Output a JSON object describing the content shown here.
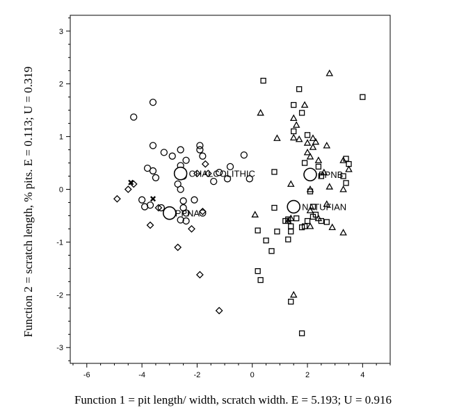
{
  "chart_data": {
    "type": "scatter",
    "xlabel": "Function 1 = pit length/ width, scratch width.  E = 5.193; U = 0.916",
    "ylabel": "Function 2 = scratch length, % pits.  E = 0.113; U = 0.319",
    "xlim": [
      -6.6,
      5.0
    ],
    "ylim": [
      -3.3,
      3.3
    ],
    "xticks": [
      -6,
      -4,
      -2,
      0,
      2,
      4
    ],
    "yticks": [
      -3,
      -2,
      -1,
      0,
      1,
      2,
      3
    ],
    "grid": false,
    "series": [
      {
        "marker": "circle",
        "points": [
          [
            -4.3,
            1.37
          ],
          [
            -3.6,
            1.65
          ],
          [
            -3.6,
            0.83
          ],
          [
            -3.2,
            0.7
          ],
          [
            -2.9,
            0.63
          ],
          [
            -2.6,
            0.75
          ],
          [
            -2.4,
            0.55
          ],
          [
            -1.9,
            0.83
          ],
          [
            -1.9,
            0.75
          ],
          [
            -1.8,
            0.63
          ],
          [
            -3.8,
            0.4
          ],
          [
            -3.6,
            0.35
          ],
          [
            -3.5,
            0.22
          ],
          [
            -2.6,
            0.45
          ],
          [
            -2.5,
            0.25
          ],
          [
            -2.7,
            0.1
          ],
          [
            -2.6,
            0.0
          ],
          [
            -4.0,
            -0.2
          ],
          [
            -3.9,
            -0.33
          ],
          [
            -3.7,
            -0.3
          ],
          [
            -3.3,
            -0.35
          ],
          [
            -2.5,
            -0.22
          ],
          [
            -2.5,
            -0.35
          ],
          [
            -2.4,
            -0.45
          ],
          [
            -2.6,
            -0.58
          ],
          [
            -2.4,
            -0.6
          ],
          [
            -2.1,
            -0.2
          ],
          [
            -1.8,
            -0.45
          ],
          [
            -1.4,
            0.15
          ],
          [
            -1.2,
            0.32
          ],
          [
            -0.8,
            0.43
          ],
          [
            -0.9,
            0.2
          ],
          [
            -0.3,
            0.65
          ],
          [
            -0.1,
            0.2
          ]
        ]
      },
      {
        "marker": "diamond",
        "points": [
          [
            -4.9,
            -0.18
          ],
          [
            -4.5,
            0.0
          ],
          [
            -4.3,
            0.1
          ],
          [
            -3.7,
            -0.68
          ],
          [
            -3.4,
            -0.35
          ],
          [
            -2.7,
            -1.1
          ],
          [
            -2.2,
            -0.75
          ],
          [
            -2.0,
            0.3
          ],
          [
            -1.7,
            0.48
          ],
          [
            -1.6,
            0.3
          ],
          [
            -1.8,
            -0.42
          ],
          [
            -1.9,
            -1.62
          ],
          [
            -1.2,
            -2.3
          ]
        ]
      },
      {
        "marker": "cross",
        "points": [
          [
            -4.4,
            0.13
          ],
          [
            -3.6,
            -0.18
          ]
        ]
      },
      {
        "marker": "square",
        "points": [
          [
            0.4,
            2.06
          ],
          [
            1.7,
            1.9
          ],
          [
            1.5,
            1.6
          ],
          [
            1.8,
            1.45
          ],
          [
            4.0,
            1.75
          ],
          [
            2.0,
            1.03
          ],
          [
            1.5,
            1.1
          ],
          [
            0.8,
            0.33
          ],
          [
            0.8,
            -0.35
          ],
          [
            0.2,
            -0.78
          ],
          [
            0.5,
            -0.97
          ],
          [
            0.7,
            -1.17
          ],
          [
            0.9,
            -0.8
          ],
          [
            1.3,
            -0.57
          ],
          [
            1.4,
            -0.7
          ],
          [
            1.4,
            -0.8
          ],
          [
            1.3,
            -0.95
          ],
          [
            1.6,
            -0.55
          ],
          [
            1.8,
            -0.72
          ],
          [
            1.9,
            -0.7
          ],
          [
            2.0,
            -0.6
          ],
          [
            2.2,
            -0.52
          ],
          [
            2.3,
            -0.48
          ],
          [
            2.5,
            -0.6
          ],
          [
            2.7,
            -0.62
          ],
          [
            1.9,
            0.5
          ],
          [
            2.0,
            0.3
          ],
          [
            3.4,
            0.58
          ],
          [
            3.5,
            0.48
          ],
          [
            3.3,
            0.25
          ],
          [
            3.4,
            0.12
          ],
          [
            0.2,
            -1.55
          ],
          [
            0.3,
            -1.72
          ],
          [
            1.4,
            -2.13
          ],
          [
            1.8,
            -2.73
          ],
          [
            2.4,
            0.43
          ],
          [
            2.5,
            0.25
          ],
          [
            2.1,
            -0.04
          ],
          [
            2.2,
            -0.33
          ],
          [
            1.2,
            -0.6
          ]
        ]
      },
      {
        "marker": "triangle",
        "points": [
          [
            2.8,
            2.2
          ],
          [
            0.3,
            1.45
          ],
          [
            1.5,
            1.35
          ],
          [
            1.6,
            1.22
          ],
          [
            1.9,
            1.6
          ],
          [
            0.9,
            0.97
          ],
          [
            1.5,
            0.98
          ],
          [
            1.7,
            0.95
          ],
          [
            2.0,
            0.88
          ],
          [
            2.2,
            0.97
          ],
          [
            2.3,
            0.9
          ],
          [
            2.2,
            0.8
          ],
          [
            2.7,
            0.83
          ],
          [
            2.0,
            0.7
          ],
          [
            2.1,
            0.62
          ],
          [
            3.5,
            0.38
          ],
          [
            3.3,
            0.55
          ],
          [
            2.6,
            0.32
          ],
          [
            2.8,
            0.05
          ],
          [
            3.3,
            0.0
          ],
          [
            1.4,
            0.1
          ],
          [
            2.1,
            0.0
          ],
          [
            0.1,
            -0.48
          ],
          [
            1.3,
            -0.6
          ],
          [
            2.1,
            -0.4
          ],
          [
            2.4,
            -0.55
          ],
          [
            2.9,
            -0.72
          ],
          [
            3.3,
            -0.82
          ],
          [
            2.7,
            -0.28
          ],
          [
            2.1,
            -0.7
          ],
          [
            1.5,
            -2.0
          ],
          [
            1.4,
            -0.55
          ],
          [
            2.4,
            0.55
          ]
        ]
      },
      {
        "marker": "centroid",
        "points": [
          [
            -2.6,
            0.3
          ],
          [
            -3.0,
            -0.45
          ],
          [
            2.1,
            0.28
          ],
          [
            1.5,
            -0.33
          ]
        ]
      }
    ],
    "annotations": [
      {
        "text": "CHALCOLITHIC",
        "x": -2.3,
        "y": 0.3
      },
      {
        "text": "PPNA",
        "x": -2.8,
        "y": -0.45
      },
      {
        "text": "PPNB",
        "x": 2.4,
        "y": 0.28
      },
      {
        "text": "NATUFIAN",
        "x": 1.8,
        "y": -0.33
      }
    ]
  }
}
